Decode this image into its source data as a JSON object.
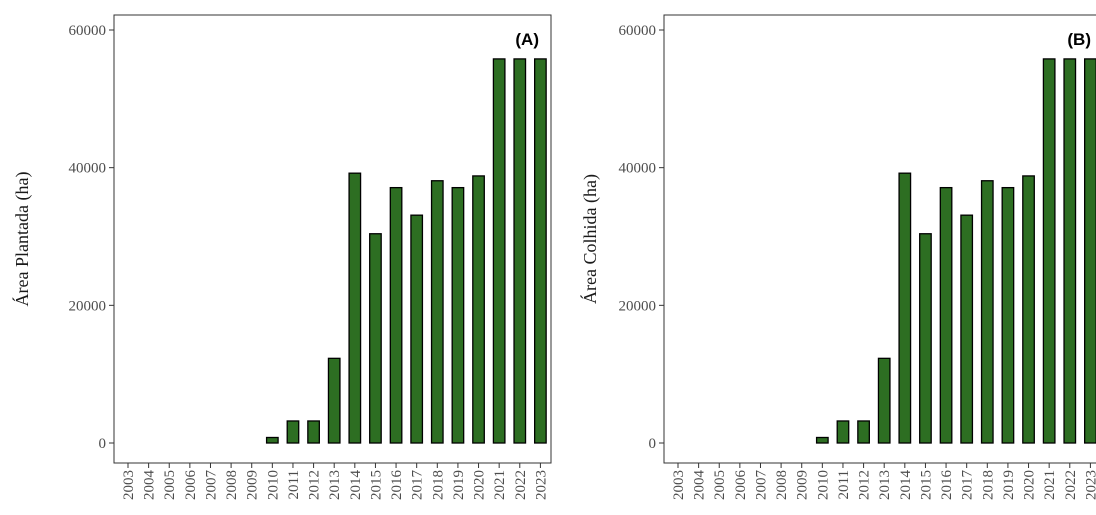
{
  "colors": {
    "bar_fill": "#2d6e22",
    "bar_stroke": "#000000",
    "panel_border": "#333333",
    "background": "#ffffff"
  },
  "chart_data": [
    {
      "type": "bar",
      "panel_label": "(A)",
      "xlabel": "",
      "ylabel": "Área Plantada  (ha)",
      "ylim": [
        0,
        60000
      ],
      "yticks": [
        "0",
        "20000",
        "40000",
        "60000"
      ],
      "grid": false,
      "categories": [
        "2003",
        "2004",
        "2005",
        "2006",
        "2007",
        "2008",
        "2009",
        "2010",
        "2011",
        "2012",
        "2013",
        "2014",
        "2015",
        "2016",
        "2017",
        "2018",
        "2019",
        "2020",
        "2021",
        "2022",
        "2023"
      ],
      "values": [
        0,
        0,
        0,
        0,
        0,
        0,
        0,
        800,
        3200,
        3200,
        12300,
        39200,
        30400,
        37100,
        33100,
        38100,
        37100,
        38800,
        55800,
        55800,
        55800
      ]
    },
    {
      "type": "bar",
      "panel_label": "(B)",
      "xlabel": "",
      "ylabel": "Área Colhida  (ha)",
      "ylim": [
        0,
        60000
      ],
      "yticks": [
        "0",
        "20000",
        "40000",
        "60000"
      ],
      "grid": false,
      "categories": [
        "2003",
        "2004",
        "2005",
        "2006",
        "2007",
        "2008",
        "2009",
        "2010",
        "2011",
        "2012",
        "2013",
        "2014",
        "2015",
        "2016",
        "2017",
        "2018",
        "2019",
        "2020",
        "2021",
        "2022",
        "2023"
      ],
      "values": [
        0,
        0,
        0,
        0,
        0,
        0,
        0,
        800,
        3200,
        3200,
        12300,
        39200,
        30400,
        37100,
        33100,
        38100,
        37100,
        38800,
        55800,
        55800,
        55800
      ]
    }
  ]
}
